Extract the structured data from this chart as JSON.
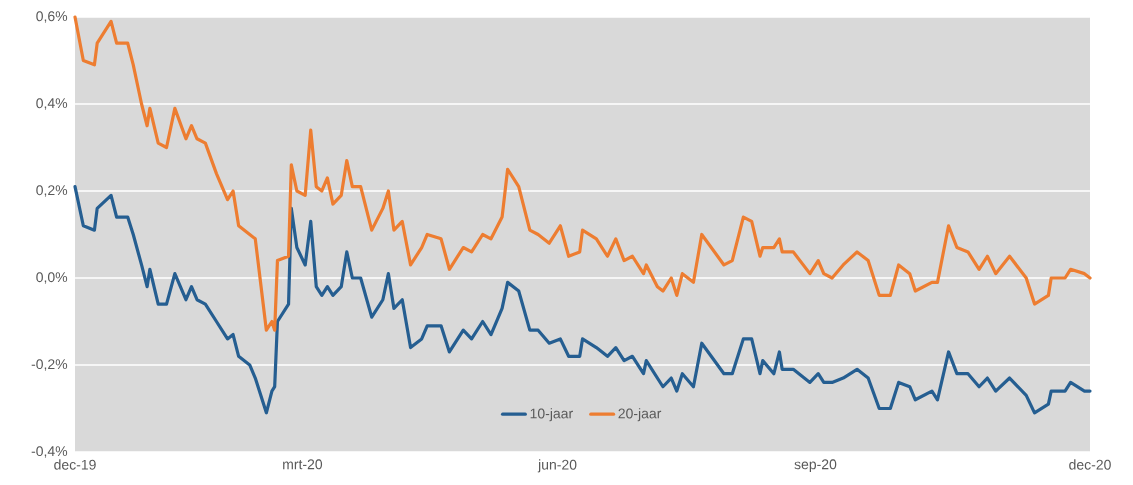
{
  "chart_data": {
    "type": "line",
    "x": [
      "2019-12-31",
      "2020-01-03",
      "2020-01-07",
      "2020-01-08",
      "2020-01-13",
      "2020-01-15",
      "2020-01-19",
      "2020-01-21",
      "2020-01-24",
      "2020-01-26",
      "2020-01-27",
      "2020-01-30",
      "2020-02-02",
      "2020-02-05",
      "2020-02-09",
      "2020-02-11",
      "2020-02-13",
      "2020-02-16",
      "2020-02-20",
      "2020-02-24",
      "2020-02-26",
      "2020-02-28",
      "2020-03-03",
      "2020-03-05",
      "2020-03-09",
      "2020-03-11",
      "2020-03-12",
      "2020-03-13",
      "2020-03-17",
      "2020-03-18",
      "2020-03-20",
      "2020-03-23",
      "2020-03-25",
      "2020-03-27",
      "2020-03-29",
      "2020-03-31",
      "2020-04-02",
      "2020-04-05",
      "2020-04-07",
      "2020-04-09",
      "2020-04-12",
      "2020-04-16",
      "2020-04-20",
      "2020-04-22",
      "2020-04-24",
      "2020-04-27",
      "2020-04-30",
      "2020-05-04",
      "2020-05-06",
      "2020-05-11",
      "2020-05-14",
      "2020-05-19",
      "2020-05-22",
      "2020-05-26",
      "2020-05-29",
      "2020-06-02",
      "2020-06-04",
      "2020-06-08",
      "2020-06-12",
      "2020-06-15",
      "2020-06-19",
      "2020-06-23",
      "2020-06-26",
      "2020-06-30",
      "2020-07-01",
      "2020-07-06",
      "2020-07-10",
      "2020-07-13",
      "2020-07-16",
      "2020-07-19",
      "2020-07-23",
      "2020-07-24",
      "2020-07-28",
      "2020-07-30",
      "2020-08-02",
      "2020-08-04",
      "2020-08-06",
      "2020-08-10",
      "2020-08-13",
      "2020-08-21",
      "2020-08-24",
      "2020-08-28",
      "2020-08-31",
      "2020-09-03",
      "2020-09-04",
      "2020-09-08",
      "2020-09-10",
      "2020-09-11",
      "2020-09-15",
      "2020-09-21",
      "2020-09-24",
      "2020-09-26",
      "2020-09-29",
      "2020-10-03",
      "2020-10-08",
      "2020-10-12",
      "2020-10-16",
      "2020-10-20",
      "2020-10-23",
      "2020-10-27",
      "2020-10-29",
      "2020-11-04",
      "2020-11-06",
      "2020-11-10",
      "2020-11-13",
      "2020-11-17",
      "2020-11-21",
      "2020-11-24",
      "2020-11-27",
      "2020-12-02",
      "2020-12-08",
      "2020-12-11",
      "2020-12-16",
      "2020-12-17",
      "2020-12-22",
      "2020-12-24",
      "2020-12-29",
      "2020-12-31"
    ],
    "series": [
      {
        "name": "10-jaar",
        "color": "#255e91",
        "values": [
          0.21,
          0.12,
          0.11,
          0.16,
          0.19,
          0.14,
          0.14,
          0.1,
          0.03,
          -0.02,
          0.02,
          -0.06,
          -0.06,
          0.01,
          -0.05,
          -0.02,
          -0.05,
          -0.06,
          -0.1,
          -0.14,
          -0.13,
          -0.18,
          -0.2,
          -0.23,
          -0.31,
          -0.26,
          -0.25,
          -0.1,
          -0.06,
          0.16,
          0.07,
          0.03,
          0.13,
          -0.02,
          -0.04,
          -0.02,
          -0.04,
          -0.02,
          0.06,
          0.0,
          0.0,
          -0.09,
          -0.05,
          0.01,
          -0.07,
          -0.05,
          -0.16,
          -0.14,
          -0.11,
          -0.11,
          -0.17,
          -0.12,
          -0.14,
          -0.1,
          -0.13,
          -0.07,
          -0.01,
          -0.03,
          -0.12,
          -0.12,
          -0.15,
          -0.14,
          -0.18,
          -0.18,
          -0.14,
          -0.16,
          -0.18,
          -0.16,
          -0.19,
          -0.18,
          -0.22,
          -0.19,
          -0.23,
          -0.25,
          -0.23,
          -0.26,
          -0.22,
          -0.25,
          -0.15,
          -0.22,
          -0.22,
          -0.14,
          -0.14,
          -0.22,
          -0.19,
          -0.22,
          -0.17,
          -0.21,
          -0.21,
          -0.24,
          -0.22,
          -0.24,
          -0.24,
          -0.23,
          -0.21,
          -0.23,
          -0.3,
          -0.3,
          -0.24,
          -0.25,
          -0.28,
          -0.26,
          -0.28,
          -0.17,
          -0.22,
          -0.22,
          -0.25,
          -0.23,
          -0.26,
          -0.23,
          -0.27,
          -0.31,
          -0.29,
          -0.26,
          -0.26,
          -0.24,
          -0.26,
          -0.26
        ]
      },
      {
        "name": "20-jaar",
        "color": "#ed7d31",
        "values": [
          0.6,
          0.5,
          0.49,
          0.54,
          0.59,
          0.54,
          0.54,
          0.49,
          0.4,
          0.35,
          0.39,
          0.31,
          0.3,
          0.39,
          0.32,
          0.35,
          0.32,
          0.31,
          0.24,
          0.18,
          0.2,
          0.12,
          0.1,
          0.09,
          -0.12,
          -0.1,
          -0.12,
          0.04,
          0.05,
          0.26,
          0.2,
          0.19,
          0.34,
          0.21,
          0.2,
          0.23,
          0.17,
          0.19,
          0.27,
          0.21,
          0.21,
          0.11,
          0.16,
          0.2,
          0.11,
          0.13,
          0.03,
          0.07,
          0.1,
          0.09,
          0.02,
          0.07,
          0.06,
          0.1,
          0.09,
          0.14,
          0.25,
          0.21,
          0.11,
          0.1,
          0.08,
          0.12,
          0.05,
          0.06,
          0.11,
          0.09,
          0.05,
          0.09,
          0.04,
          0.05,
          0.01,
          0.03,
          -0.02,
          -0.03,
          0.0,
          -0.04,
          0.01,
          -0.01,
          0.1,
          0.03,
          0.04,
          0.14,
          0.13,
          0.05,
          0.07,
          0.07,
          0.09,
          0.06,
          0.06,
          0.01,
          0.04,
          0.01,
          0.0,
          0.03,
          0.06,
          0.04,
          -0.04,
          -0.04,
          0.03,
          0.01,
          -0.03,
          -0.01,
          -0.01,
          0.12,
          0.07,
          0.06,
          0.02,
          0.05,
          0.01,
          0.05,
          0.0,
          -0.06,
          -0.04,
          0.0,
          0.0,
          0.02,
          0.01,
          0.0
        ]
      }
    ],
    "xlim": [
      "2019-12-31",
      "2020-12-31"
    ],
    "xticks": [
      {
        "value": "2019-12-31",
        "label": "dec-19"
      },
      {
        "value": "2020-03-22",
        "label": "mrt-20"
      },
      {
        "value": "2020-06-22",
        "label": "jun-20"
      },
      {
        "value": "2020-09-23",
        "label": "sep-20"
      },
      {
        "value": "2020-12-31",
        "label": "dec-20"
      }
    ],
    "ylim": [
      -0.4,
      0.6
    ],
    "yticks": [
      {
        "value": -0.4,
        "label": "-0,4%"
      },
      {
        "value": -0.2,
        "label": "-0,2%"
      },
      {
        "value": 0.0,
        "label": "0,0%"
      },
      {
        "value": 0.2,
        "label": "0,2%"
      },
      {
        "value": 0.4,
        "label": "0,4%"
      },
      {
        "value": 0.6,
        "label": "0,6%"
      }
    ],
    "grid": "y",
    "legend": "bottom",
    "marker": "none",
    "line_style": "solid"
  }
}
